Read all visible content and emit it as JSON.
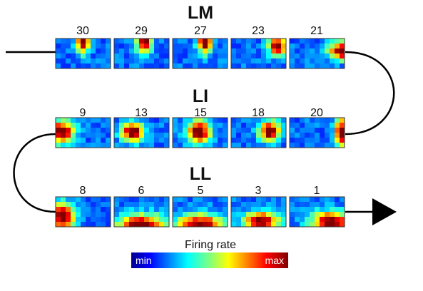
{
  "groups": [
    {
      "label": "LM",
      "panels": [
        "30",
        "29",
        "27",
        "23",
        "21"
      ]
    },
    {
      "label": "LI",
      "panels": [
        "9",
        "13",
        "15",
        "18",
        "20"
      ]
    },
    {
      "label": "LL",
      "panels": [
        "8",
        "6",
        "5",
        "3",
        "1"
      ]
    }
  ],
  "colorbar": {
    "title": "Firing rate",
    "min_label": "min",
    "max_label": "max",
    "colormap": "jet"
  },
  "colors": {
    "line": "#000000",
    "low": "#1f2bd6",
    "high": "#7a0000"
  }
}
